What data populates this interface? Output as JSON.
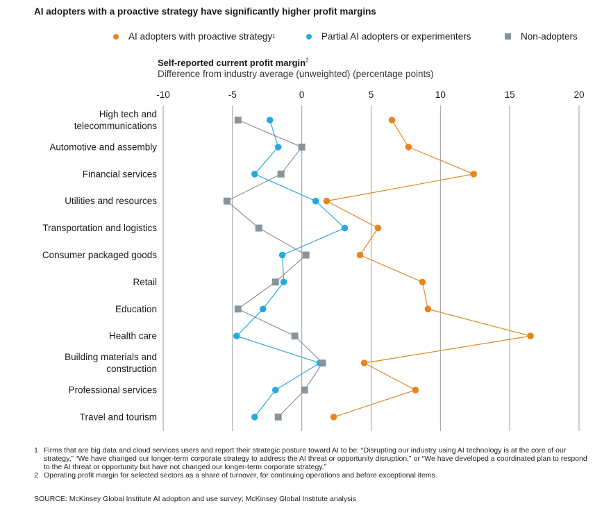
{
  "title": "AI adopters with a proactive strategy have significantly higher profit margins",
  "legend": [
    {
      "label": "AI adopters with proactive strategy",
      "sup": "1",
      "color": "#E5861E",
      "shape": "circle"
    },
    {
      "label": "Partial AI adopters or experimenters",
      "sup": "",
      "color": "#27A9DF",
      "shape": "circle"
    },
    {
      "label": "Non-adopters",
      "sup": "",
      "color": "#8A9399",
      "shape": "square"
    }
  ],
  "axis_title": "Self-reported current profit margin",
  "axis_title_sup": "2",
  "axis_subtitle": "Difference from industry average (unweighted) (percentage points)",
  "chart_data": {
    "type": "scatter",
    "orientation": "horizontal",
    "categories": [
      "High tech and telecommunications",
      "Automotive and assembly",
      "Financial services",
      "Utilities and resources",
      "Transportation and logistics",
      "Consumer packaged goods",
      "Retail",
      "Education",
      "Health care",
      "Building materials and construction",
      "Professional services",
      "Travel and tourism"
    ],
    "category_lines": [
      [
        "High tech and",
        "telecommunications"
      ],
      [
        "Automotive and assembly"
      ],
      [
        "Financial services"
      ],
      [
        "Utilities and resources"
      ],
      [
        "Transportation and logistics"
      ],
      [
        "Consumer packaged goods"
      ],
      [
        "Retail"
      ],
      [
        "Education"
      ],
      [
        "Health care"
      ],
      [
        "Building materials and",
        "construction"
      ],
      [
        "Professional services"
      ],
      [
        "Travel and tourism"
      ]
    ],
    "series": [
      {
        "name": "AI adopters with proactive strategy",
        "color": "#E5861E",
        "shape": "circle",
        "values": [
          6.5,
          7.7,
          12.4,
          1.8,
          5.5,
          4.2,
          8.7,
          9.1,
          16.5,
          4.5,
          8.2,
          2.3
        ]
      },
      {
        "name": "Partial AI adopters or experimenters",
        "color": "#27A9DF",
        "shape": "circle",
        "values": [
          -2.3,
          -1.7,
          -3.4,
          1.0,
          3.1,
          -1.4,
          -1.3,
          -2.8,
          -4.7,
          1.3,
          -1.9,
          -3.4
        ]
      },
      {
        "name": "Non-adopters",
        "color": "#8A9399",
        "shape": "square",
        "values": [
          -4.6,
          0.0,
          -1.5,
          -5.4,
          -3.1,
          0.3,
          -1.9,
          -4.6,
          -0.5,
          1.5,
          0.2,
          -1.7
        ]
      }
    ],
    "xlim": [
      -10,
      20
    ],
    "xticks": [
      -10,
      -5,
      0,
      5,
      10,
      15,
      20
    ],
    "grid": true,
    "legend_position": "top-right"
  },
  "footnotes": [
    {
      "num": "1",
      "text": "Firms that are big data and cloud services users and report their strategic posture toward AI to be: “Disrupting our industry using AI technology is at the core of our strategy,” “We have changed our longer-term corporate strategy to address the AI threat or opportunity disruption,” or “We have developed a coordinated plan to respond to the AI threat or opportunity but have not changed our longer-term corporate strategy.”"
    },
    {
      "num": "2",
      "text": "Operating profit margin for selected sectors as a share of turnover, for continuing operations and before exceptional items."
    }
  ],
  "source": "SOURCE:  McKinsey Global Institute AI adoption and use survey; McKinsey Global Institute analysis"
}
